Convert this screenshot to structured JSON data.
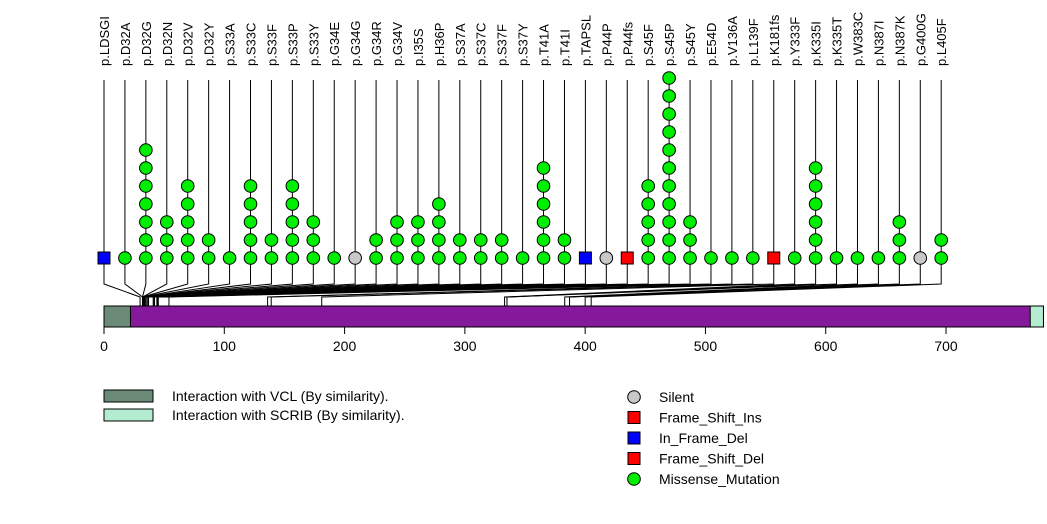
{
  "chart_data": {
    "type": "lollipop",
    "title": "",
    "protein_length": 781,
    "xaxis": {
      "range": [
        0,
        781
      ],
      "ticks": [
        0,
        100,
        200,
        300,
        400,
        500,
        600,
        700
      ],
      "tick_labels": [
        "0",
        "100",
        "200",
        "300",
        "400",
        "500",
        "600",
        "700"
      ]
    },
    "domains": [
      {
        "name": "Interaction with VCL (By similarity).",
        "start": 1,
        "end": 22,
        "color": "#6b8a78"
      },
      {
        "name": "Interaction with SCRIB (By similarity).",
        "start": 771,
        "end": 781,
        "color": "#b4ecd2"
      }
    ],
    "backbone_color": "#84199c",
    "mutation_types": [
      {
        "name": "Silent",
        "shape": "circle",
        "color": "#c8c8c8"
      },
      {
        "name": "Frame_Shift_Ins",
        "shape": "square",
        "color": "#ff0000"
      },
      {
        "name": "In_Frame_Del",
        "shape": "square",
        "color": "#0000ff"
      },
      {
        "name": "Frame_Shift_Del",
        "shape": "square",
        "color": "#ff0000"
      },
      {
        "name": "Missense_Mutation",
        "shape": "circle",
        "color": "#00ee00"
      }
    ],
    "mutations": [
      {
        "label": "p.LDSGI",
        "position": 30,
        "count": 1,
        "type": "In_Frame_Del"
      },
      {
        "label": "p.D32A",
        "position": 32,
        "count": 1,
        "type": "Missense_Mutation"
      },
      {
        "label": "p.D32G",
        "position": 32,
        "count": 7,
        "type": "Missense_Mutation"
      },
      {
        "label": "p.D32N",
        "position": 32,
        "count": 3,
        "type": "Missense_Mutation"
      },
      {
        "label": "p.D32V",
        "position": 32,
        "count": 5,
        "type": "Missense_Mutation"
      },
      {
        "label": "p.D32Y",
        "position": 32,
        "count": 2,
        "type": "Missense_Mutation"
      },
      {
        "label": "p.S33A",
        "position": 33,
        "count": 1,
        "type": "Missense_Mutation"
      },
      {
        "label": "p.S33C",
        "position": 33,
        "count": 5,
        "type": "Missense_Mutation"
      },
      {
        "label": "p.S33F",
        "position": 33,
        "count": 2,
        "type": "Missense_Mutation"
      },
      {
        "label": "p.S33P",
        "position": 33,
        "count": 5,
        "type": "Missense_Mutation"
      },
      {
        "label": "p.S33Y",
        "position": 33,
        "count": 3,
        "type": "Missense_Mutation"
      },
      {
        "label": "p.G34E",
        "position": 34,
        "count": 1,
        "type": "Missense_Mutation"
      },
      {
        "label": "p.G34G",
        "position": 34,
        "count": 1,
        "type": "Silent"
      },
      {
        "label": "p.G34R",
        "position": 34,
        "count": 2,
        "type": "Missense_Mutation"
      },
      {
        "label": "p.G34V",
        "position": 34,
        "count": 3,
        "type": "Missense_Mutation"
      },
      {
        "label": "p.I35S",
        "position": 35,
        "count": 3,
        "type": "Missense_Mutation"
      },
      {
        "label": "p.H36P",
        "position": 36,
        "count": 4,
        "type": "Missense_Mutation"
      },
      {
        "label": "p.S37A",
        "position": 37,
        "count": 2,
        "type": "Missense_Mutation"
      },
      {
        "label": "p.S37C",
        "position": 37,
        "count": 2,
        "type": "Missense_Mutation"
      },
      {
        "label": "p.S37F",
        "position": 37,
        "count": 2,
        "type": "Missense_Mutation"
      },
      {
        "label": "p.S37Y",
        "position": 37,
        "count": 1,
        "type": "Missense_Mutation"
      },
      {
        "label": "p.T41A",
        "position": 41,
        "count": 6,
        "type": "Missense_Mutation"
      },
      {
        "label": "p.T41I",
        "position": 41,
        "count": 2,
        "type": "Missense_Mutation"
      },
      {
        "label": "p.TAPSL",
        "position": 42,
        "count": 1,
        "type": "In_Frame_Del"
      },
      {
        "label": "p.P44P",
        "position": 44,
        "count": 1,
        "type": "Silent"
      },
      {
        "label": "p.P44fs",
        "position": 44,
        "count": 1,
        "type": "Frame_Shift_Ins"
      },
      {
        "label": "p.S45F",
        "position": 45,
        "count": 5,
        "type": "Missense_Mutation"
      },
      {
        "label": "p.S45P",
        "position": 45,
        "count": 11,
        "type": "Missense_Mutation"
      },
      {
        "label": "p.S45Y",
        "position": 45,
        "count": 3,
        "type": "Missense_Mutation"
      },
      {
        "label": "p.E54D",
        "position": 54,
        "count": 1,
        "type": "Missense_Mutation"
      },
      {
        "label": "p.V136A",
        "position": 136,
        "count": 1,
        "type": "Missense_Mutation"
      },
      {
        "label": "p.L139F",
        "position": 139,
        "count": 1,
        "type": "Missense_Mutation"
      },
      {
        "label": "p.K181fs",
        "position": 181,
        "count": 1,
        "type": "Frame_Shift_Del"
      },
      {
        "label": "p.Y333F",
        "position": 333,
        "count": 1,
        "type": "Missense_Mutation"
      },
      {
        "label": "p.K335I",
        "position": 335,
        "count": 6,
        "type": "Missense_Mutation"
      },
      {
        "label": "p.K335T",
        "position": 335,
        "count": 1,
        "type": "Missense_Mutation"
      },
      {
        "label": "p.W383C",
        "position": 383,
        "count": 1,
        "type": "Missense_Mutation"
      },
      {
        "label": "p.N387I",
        "position": 387,
        "count": 1,
        "type": "Missense_Mutation"
      },
      {
        "label": "p.N387K",
        "position": 387,
        "count": 3,
        "type": "Missense_Mutation"
      },
      {
        "label": "p.G400G",
        "position": 400,
        "count": 1,
        "type": "Silent"
      },
      {
        "label": "p.L405F",
        "position": 405,
        "count": 2,
        "type": "Missense_Mutation"
      }
    ],
    "legend": {
      "domains_placement": "bottom-left",
      "mutation_types_placement": "bottom-center"
    }
  }
}
